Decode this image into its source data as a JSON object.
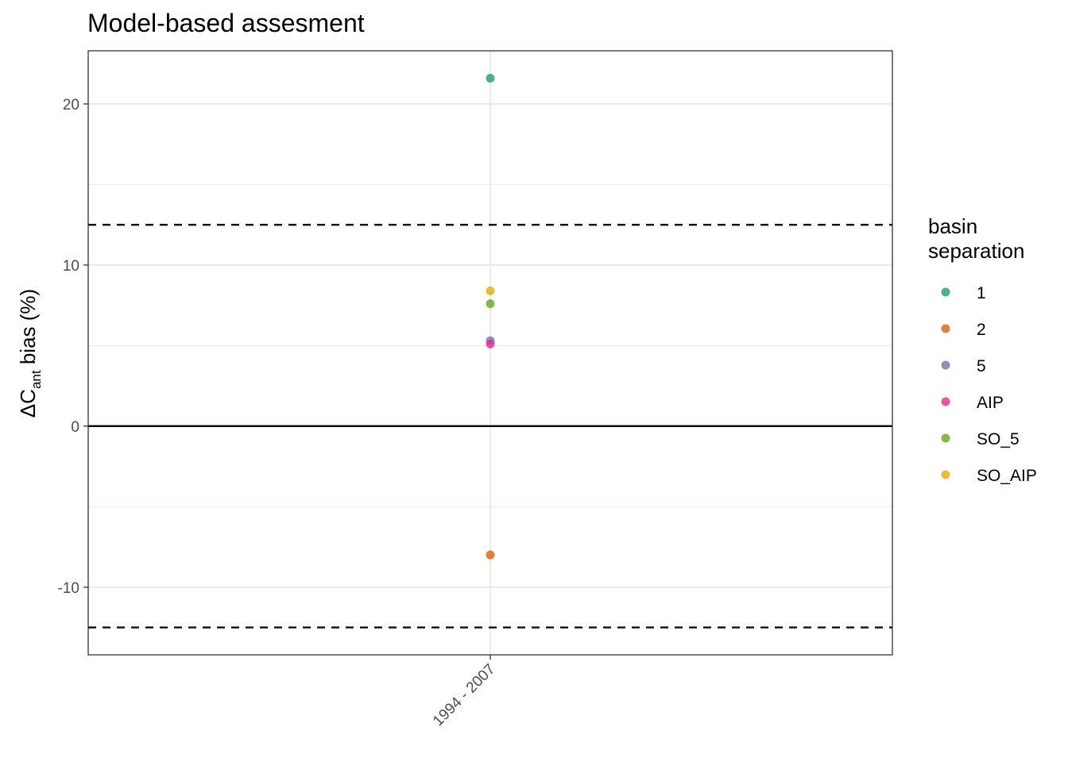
{
  "chart_data": {
    "type": "scatter",
    "title": "Model-based assesment",
    "xlabel": "",
    "ylabel": {
      "prefix": "ΔC",
      "subscript": "ant",
      "suffix": " bias (%)"
    },
    "categories": [
      "1994 - 2007"
    ],
    "ylim": [
      -14.2,
      23.3
    ],
    "yticks": [
      -10,
      0,
      10,
      20
    ],
    "y_minor_gridlines": [
      -5,
      5,
      15
    ],
    "reference_lines": [
      {
        "y": 0,
        "style": "solid"
      },
      {
        "y": 12.5,
        "style": "dashed"
      },
      {
        "y": -12.5,
        "style": "dashed"
      }
    ],
    "grid": true,
    "legend": {
      "title_lines": [
        "basin",
        "separation"
      ],
      "placement": "right"
    },
    "series": [
      {
        "name": "1",
        "color": "#1b9e77",
        "values": [
          {
            "x": "1994 - 2007",
            "y": 21.6
          }
        ]
      },
      {
        "name": "2",
        "color": "#d95f02",
        "values": [
          {
            "x": "1994 - 2007",
            "y": -8.0
          }
        ]
      },
      {
        "name": "5",
        "color": "#7570b3",
        "values": [
          {
            "x": "1994 - 2007",
            "y": 5.3
          }
        ]
      },
      {
        "name": "AIP",
        "color": "#e7298a",
        "values": [
          {
            "x": "1994 - 2007",
            "y": 5.1
          }
        ]
      },
      {
        "name": "SO_5",
        "color": "#66a61e",
        "values": [
          {
            "x": "1994 - 2007",
            "y": 7.6
          }
        ]
      },
      {
        "name": "SO_AIP",
        "color": "#e6ab02",
        "values": [
          {
            "x": "1994 - 2007",
            "y": 8.4
          }
        ]
      }
    ]
  }
}
